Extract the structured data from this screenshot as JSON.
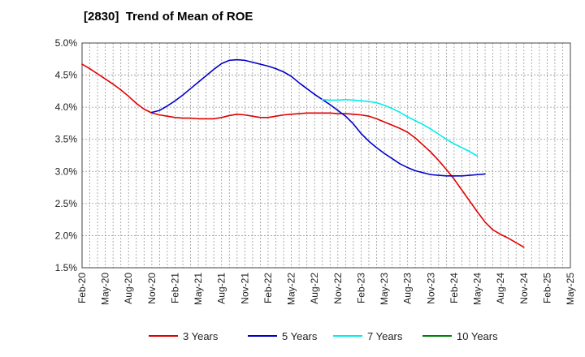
{
  "chart_data": {
    "type": "line",
    "title": "[2830]  Trend of Mean of ROE",
    "xlabel": "",
    "ylabel": "",
    "x_ticks": [
      "Feb-20",
      "May-20",
      "Aug-20",
      "Nov-20",
      "Feb-21",
      "May-21",
      "Aug-21",
      "Nov-21",
      "Feb-22",
      "May-22",
      "Aug-22",
      "Nov-22",
      "Feb-23",
      "May-23",
      "Aug-23",
      "Nov-23",
      "Feb-24",
      "May-24",
      "Aug-24",
      "Nov-24",
      "Feb-25",
      "May-25"
    ],
    "y_ticks": [
      "1.5%",
      "2.0%",
      "2.5%",
      "3.0%",
      "3.5%",
      "4.0%",
      "4.5%",
      "5.0%"
    ],
    "ylim": [
      1.5,
      5.0
    ],
    "grid": true,
    "legend_position": "bottom",
    "series": [
      {
        "name": "3 Years",
        "color": "#e00000",
        "values": [
          4.67,
          4.6,
          4.52,
          4.44,
          4.36,
          4.27,
          4.17,
          4.06,
          3.97,
          3.91,
          3.88,
          3.86,
          3.84,
          3.83,
          3.83,
          3.82,
          3.82,
          3.82,
          3.84,
          3.87,
          3.89,
          3.88,
          3.86,
          3.84,
          3.84,
          3.86,
          3.88,
          3.89,
          3.9,
          3.91,
          3.91,
          3.91,
          3.91,
          3.9,
          3.9,
          3.89,
          3.88,
          3.86,
          3.82,
          3.77,
          3.72,
          3.67,
          3.61,
          3.52,
          3.41,
          3.3,
          3.17,
          3.03,
          2.88,
          2.71,
          2.54,
          2.37,
          2.21,
          2.09,
          2.02,
          1.96,
          1.89,
          1.82
        ]
      },
      {
        "name": "5 Years",
        "color": "#0000c8",
        "values": [
          null,
          null,
          null,
          null,
          null,
          null,
          null,
          null,
          null,
          3.92,
          3.95,
          4.02,
          4.1,
          4.19,
          4.29,
          4.39,
          4.49,
          4.59,
          4.68,
          4.73,
          4.74,
          4.73,
          4.7,
          4.67,
          4.64,
          4.6,
          4.55,
          4.48,
          4.38,
          4.29,
          4.2,
          4.12,
          4.04,
          3.95,
          3.86,
          3.74,
          3.59,
          3.47,
          3.37,
          3.28,
          3.2,
          3.12,
          3.06,
          3.01,
          2.98,
          2.95,
          2.94,
          2.93,
          2.93,
          2.93,
          2.94,
          2.95,
          2.96
        ]
      },
      {
        "name": "7 Years",
        "color": "#00eeee",
        "values": [
          null,
          null,
          null,
          null,
          null,
          null,
          null,
          null,
          null,
          null,
          null,
          null,
          null,
          null,
          null,
          null,
          null,
          null,
          null,
          null,
          null,
          null,
          null,
          null,
          null,
          null,
          null,
          null,
          null,
          null,
          null,
          4.12,
          4.11,
          4.11,
          4.12,
          4.11,
          4.1,
          4.09,
          4.07,
          4.03,
          3.98,
          3.92,
          3.85,
          3.79,
          3.73,
          3.66,
          3.58,
          3.5,
          3.43,
          3.37,
          3.31,
          3.24
        ]
      },
      {
        "name": "10 Years",
        "color": "#008000",
        "values": []
      }
    ]
  }
}
